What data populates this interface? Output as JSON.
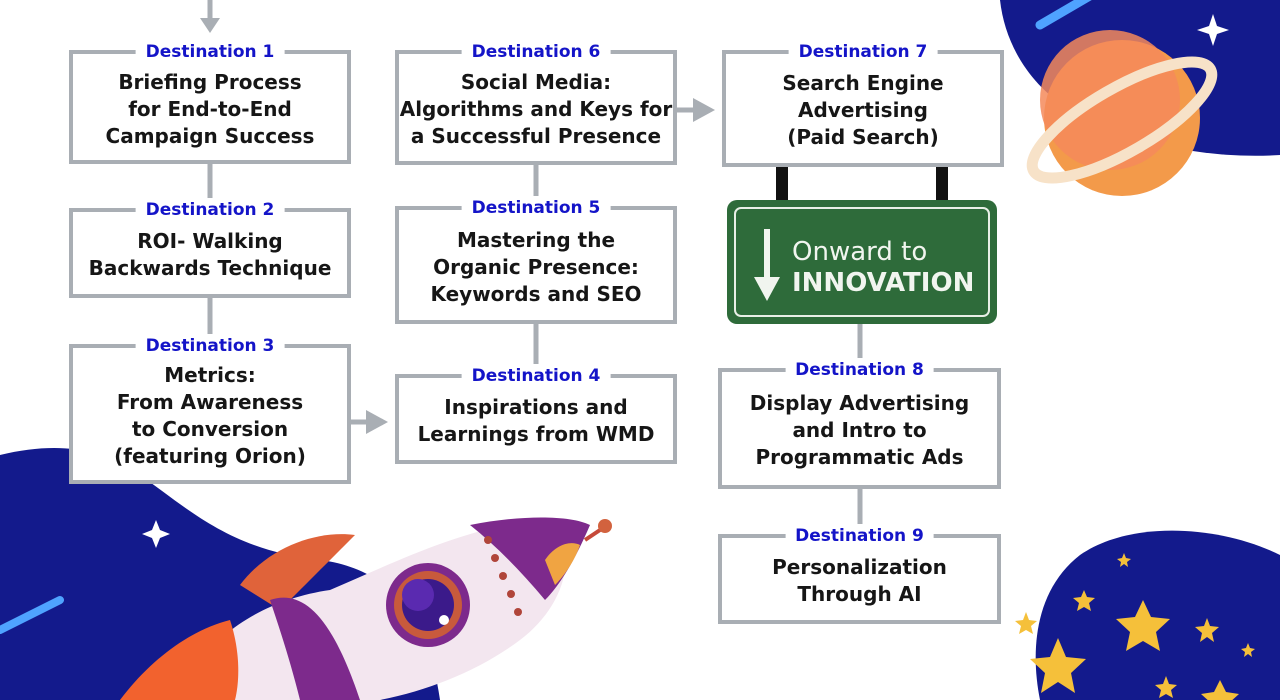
{
  "destinations": [
    {
      "label": "Destination 1",
      "text": "Briefing Process\nfor End-to-End\nCampaign Success"
    },
    {
      "label": "Destination 2",
      "text": "ROI- Walking\nBackwards Technique"
    },
    {
      "label": "Destination 3",
      "text": "Metrics:\nFrom Awareness\nto Conversion\n(featuring Orion)"
    },
    {
      "label": "Destination 4",
      "text": "Inspirations and\nLearnings from WMD"
    },
    {
      "label": "Destination 5",
      "text": "Mastering the\nOrganic Presence:\nKeywords and SEO"
    },
    {
      "label": "Destination 6",
      "text": "Social Media:\nAlgorithms and Keys for\na Successful Presence"
    },
    {
      "label": "Destination 7",
      "text": "Search Engine\nAdvertising\n(Paid Search)"
    },
    {
      "label": "Destination 8",
      "text": "Display Advertising\nand Intro to\nProgrammatic Ads"
    },
    {
      "label": "Destination 9",
      "text": "Personalization\nThrough AI"
    }
  ],
  "sign": {
    "line1": "Onward to",
    "line2": "INNOVATION"
  },
  "colors": {
    "space": "#131a8c",
    "label": "#1414c8",
    "border": "#a9aeb4",
    "sign": "#2e6b3a"
  },
  "decorations": [
    "planet",
    "rocket",
    "stars",
    "comet"
  ]
}
